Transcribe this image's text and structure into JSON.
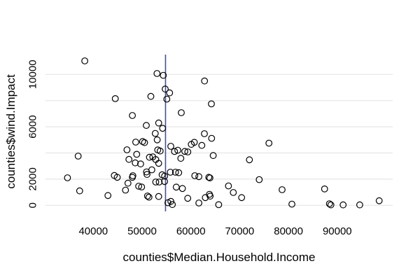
{
  "figure": {
    "background": "#ffffff",
    "text_color": "#000000",
    "gridline_color": "#e6e6e6",
    "marker_color": "#000000",
    "vline_color": "#3b4cc0"
  },
  "chart_data": {
    "type": "scatter",
    "title": "",
    "xlabel": "counties$Median.Household.Income",
    "ylabel": "counties$wind.Impact",
    "xlim": [
      30200,
      101400
    ],
    "ylim": [
      -500,
      12500
    ],
    "grid": "horizontal-only",
    "legend": "none",
    "marker": "open-circle",
    "x_tick_values": [
      40000,
      50000,
      60000,
      70000,
      80000,
      90000
    ],
    "x_tick_labels": [
      "40000",
      "50000",
      "60000",
      "70000",
      "80000",
      "90000"
    ],
    "y_tick_values": [
      0,
      2000,
      6000,
      10000
    ],
    "y_tick_labels": [
      "0",
      "2000",
      "6000",
      "10000"
    ],
    "y_gridline_values": [
      0,
      2000,
      4000,
      6000,
      8000,
      10000
    ],
    "vline": {
      "x": 54800
    },
    "points": [
      [
        34700,
        2100
      ],
      [
        36900,
        3760
      ],
      [
        37200,
        1100
      ],
      [
        38250,
        11030
      ],
      [
        43000,
        750
      ],
      [
        44300,
        2280
      ],
      [
        44500,
        8150
      ],
      [
        44900,
        2140
      ],
      [
        46600,
        1160
      ],
      [
        46900,
        4240
      ],
      [
        47100,
        1690
      ],
      [
        47300,
        3510
      ],
      [
        48000,
        2140
      ],
      [
        48000,
        6860
      ],
      [
        48100,
        2260
      ],
      [
        48600,
        3240
      ],
      [
        48700,
        4830
      ],
      [
        48900,
        3900
      ],
      [
        49300,
        1460
      ],
      [
        49700,
        3160
      ],
      [
        49900,
        1400
      ],
      [
        50100,
        4870
      ],
      [
        50500,
        4790
      ],
      [
        50860,
        6100
      ],
      [
        50900,
        2550
      ],
      [
        51000,
        2360
      ],
      [
        51100,
        710
      ],
      [
        51400,
        620
      ],
      [
        51500,
        3670
      ],
      [
        51800,
        8320
      ],
      [
        52000,
        2710
      ],
      [
        52200,
        3700
      ],
      [
        52700,
        5490
      ],
      [
        52800,
        1780
      ],
      [
        52800,
        3500
      ],
      [
        53050,
        10070
      ],
      [
        53100,
        5000
      ],
      [
        53200,
        4230
      ],
      [
        53400,
        675
      ],
      [
        53400,
        3210
      ],
      [
        53400,
        6290
      ],
      [
        53500,
        1780
      ],
      [
        53700,
        4150
      ],
      [
        54100,
        2330
      ],
      [
        54200,
        5880
      ],
      [
        54350,
        9930
      ],
      [
        54600,
        1820
      ],
      [
        54600,
        2230
      ],
      [
        54740,
        8880
      ],
      [
        55070,
        8110
      ],
      [
        55300,
        200
      ],
      [
        55640,
        8590
      ],
      [
        55780,
        2530
      ],
      [
        55880,
        4510
      ],
      [
        55900,
        300
      ],
      [
        56200,
        60
      ],
      [
        56640,
        4110
      ],
      [
        56840,
        2530
      ],
      [
        57000,
        1390
      ],
      [
        57310,
        4210
      ],
      [
        57500,
        2490
      ],
      [
        57930,
        3590
      ],
      [
        58030,
        7075
      ],
      [
        58270,
        1285
      ],
      [
        58750,
        4120
      ],
      [
        59360,
        535
      ],
      [
        59370,
        4080
      ],
      [
        60090,
        4660
      ],
      [
        60700,
        4815
      ],
      [
        60800,
        2260
      ],
      [
        61630,
        175
      ],
      [
        61630,
        2195
      ],
      [
        62240,
        4580
      ],
      [
        62770,
        5470
      ],
      [
        62800,
        9500
      ],
      [
        62960,
        590
      ],
      [
        63670,
        2140
      ],
      [
        63800,
        840
      ],
      [
        63900,
        2090
      ],
      [
        63950,
        700
      ],
      [
        64200,
        7750
      ],
      [
        64250,
        5115
      ],
      [
        64580,
        3800
      ],
      [
        65700,
        50
      ],
      [
        67700,
        1480
      ],
      [
        68700,
        980
      ],
      [
        70400,
        590
      ],
      [
        72000,
        3475
      ],
      [
        74000,
        1960
      ],
      [
        76000,
        4750
      ],
      [
        78700,
        1190
      ],
      [
        80700,
        90
      ],
      [
        87400,
        1250
      ],
      [
        88400,
        120
      ],
      [
        88700,
        30
      ],
      [
        91200,
        30
      ],
      [
        94600,
        30
      ],
      [
        98600,
        350
      ]
    ]
  }
}
